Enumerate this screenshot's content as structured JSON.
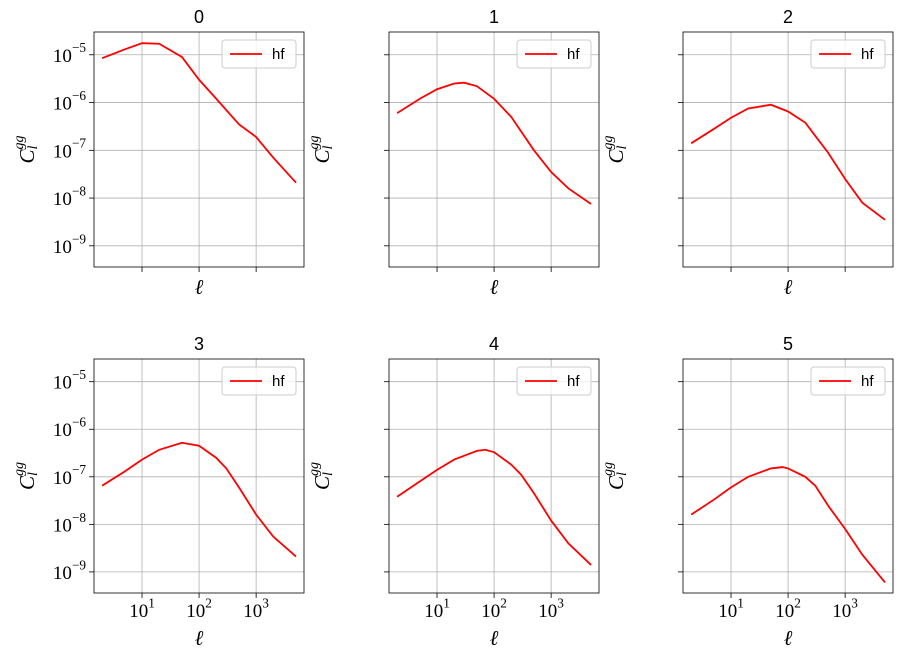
{
  "chart_data": [
    {
      "type": "line",
      "title": "0",
      "xlabel": "ℓ",
      "ylabel": "C_l^gg",
      "xscale": "log",
      "yscale": "log",
      "grid": true,
      "legend": "upper right",
      "xlim": [
        1.44,
        6900
      ],
      "ylim": [
        3.6e-10,
        3e-05
      ],
      "xticks": [
        10,
        100,
        1000
      ],
      "yticks": [
        {
          "value": 1e-09,
          "label": "10^−9"
        },
        {
          "value": 1e-08,
          "label": "10^−8"
        },
        {
          "value": 1e-07,
          "label": "10^−7"
        },
        {
          "value": 1e-06,
          "label": "10^−6"
        },
        {
          "value": 1e-05,
          "label": "10^−5"
        }
      ],
      "x": [
        2,
        5,
        10,
        20,
        50,
        100,
        200,
        500,
        1000,
        2000,
        5000
      ],
      "series": [
        {
          "name": "hf",
          "color": "#ff0000",
          "values": [
            8.5e-06,
            1.3e-05,
            1.75e-05,
            1.7e-05,
            9e-06,
            3e-06,
            1.2e-06,
            3.5e-07,
            1.9e-07,
            7e-08,
            2.1e-08
          ]
        }
      ]
    },
    {
      "type": "line",
      "title": "1",
      "xlabel": "ℓ",
      "ylabel": "C_l^gg",
      "xscale": "log",
      "yscale": "log",
      "grid": true,
      "legend": "upper right",
      "xlim": [
        1.44,
        6900
      ],
      "ylim": [
        3.6e-10,
        3e-05
      ],
      "xticks": [
        10,
        100,
        1000
      ],
      "yticks": [
        1e-09,
        1e-08,
        1e-07,
        1e-06,
        1e-05
      ],
      "x": [
        2,
        5,
        10,
        20,
        30,
        50,
        100,
        200,
        500,
        1000,
        2000,
        5000
      ],
      "series": [
        {
          "name": "hf",
          "color": "#ff0000",
          "values": [
            6e-07,
            1.2e-06,
            1.9e-06,
            2.5e-06,
            2.6e-06,
            2.2e-06,
            1.2e-06,
            5e-07,
            1e-07,
            3.5e-08,
            1.6e-08,
            7.5e-09
          ]
        }
      ]
    },
    {
      "type": "line",
      "title": "2",
      "xlabel": "ℓ",
      "ylabel": "C_l^gg",
      "xscale": "log",
      "yscale": "log",
      "grid": true,
      "legend": "upper right",
      "xlim": [
        1.44,
        6900
      ],
      "ylim": [
        3.6e-10,
        3e-05
      ],
      "xticks": [
        10,
        100,
        1000
      ],
      "yticks": [
        1e-09,
        1e-08,
        1e-07,
        1e-06,
        1e-05
      ],
      "x": [
        2,
        5,
        10,
        20,
        50,
        100,
        200,
        300,
        500,
        1000,
        2000,
        5000
      ],
      "series": [
        {
          "name": "hf",
          "color": "#ff0000",
          "values": [
            1.4e-07,
            2.8e-07,
            4.8e-07,
            7.5e-07,
            9e-07,
            6.5e-07,
            3.8e-07,
            2e-07,
            9e-08,
            2.5e-08,
            8e-09,
            3.5e-09
          ]
        }
      ]
    },
    {
      "type": "line",
      "title": "3",
      "xlabel": "ℓ",
      "ylabel": "C_l^gg",
      "xscale": "log",
      "yscale": "log",
      "grid": true,
      "legend": "upper right",
      "xlim": [
        1.44,
        6900
      ],
      "ylim": [
        3.6e-10,
        3e-05
      ],
      "xticks": [
        {
          "value": 10,
          "label": "10^1"
        },
        {
          "value": 100,
          "label": "10^2"
        },
        {
          "value": 1000,
          "label": "10^3"
        }
      ],
      "yticks": [
        {
          "value": 1e-09,
          "label": "10^−9"
        },
        {
          "value": 1e-08,
          "label": "10^−8"
        },
        {
          "value": 1e-07,
          "label": "10^−7"
        },
        {
          "value": 1e-06,
          "label": "10^−6"
        },
        {
          "value": 1e-05,
          "label": "10^−5"
        }
      ],
      "x": [
        2,
        5,
        10,
        20,
        50,
        100,
        200,
        300,
        500,
        1000,
        2000,
        5000
      ],
      "series": [
        {
          "name": "hf",
          "color": "#ff0000",
          "values": [
            6.5e-08,
            1.3e-07,
            2.3e-07,
            3.7e-07,
            5.2e-07,
            4.5e-07,
            2.5e-07,
            1.5e-07,
            6e-08,
            1.6e-08,
            5.5e-09,
            2.1e-09
          ]
        }
      ]
    },
    {
      "type": "line",
      "title": "4",
      "xlabel": "ℓ",
      "ylabel": "C_l^gg",
      "xscale": "log",
      "yscale": "log",
      "grid": true,
      "legend": "upper right",
      "xlim": [
        1.44,
        6900
      ],
      "ylim": [
        3.6e-10,
        3e-05
      ],
      "xticks": [
        {
          "value": 10,
          "label": "10^1"
        },
        {
          "value": 100,
          "label": "10^2"
        },
        {
          "value": 1000,
          "label": "10^3"
        }
      ],
      "yticks": [
        1e-09,
        1e-08,
        1e-07,
        1e-06,
        1e-05
      ],
      "x": [
        2,
        5,
        10,
        20,
        50,
        70,
        100,
        200,
        300,
        500,
        1000,
        2000,
        5000
      ],
      "series": [
        {
          "name": "hf",
          "color": "#ff0000",
          "values": [
            3.8e-08,
            8e-08,
            1.4e-07,
            2.3e-07,
            3.5e-07,
            3.7e-07,
            3.3e-07,
            1.8e-07,
            1.1e-07,
            4.5e-08,
            1.2e-08,
            4e-09,
            1.4e-09
          ]
        }
      ]
    },
    {
      "type": "line",
      "title": "5",
      "xlabel": "ℓ",
      "ylabel": "C_l^gg",
      "xscale": "log",
      "yscale": "log",
      "grid": true,
      "legend": "upper right",
      "xlim": [
        1.44,
        6900
      ],
      "ylim": [
        3.6e-10,
        3e-05
      ],
      "xticks": [
        {
          "value": 10,
          "label": "10^1"
        },
        {
          "value": 100,
          "label": "10^2"
        },
        {
          "value": 1000,
          "label": "10^3"
        }
      ],
      "yticks": [
        1e-09,
        1e-08,
        1e-07,
        1e-06,
        1e-05
      ],
      "x": [
        2,
        5,
        10,
        20,
        50,
        80,
        100,
        200,
        300,
        500,
        1000,
        2000,
        5000
      ],
      "series": [
        {
          "name": "hf",
          "color": "#ff0000",
          "values": [
            1.6e-08,
            3.3e-08,
            6e-08,
            1e-07,
            1.5e-07,
            1.6e-07,
            1.5e-07,
            1e-07,
            6.5e-08,
            2.5e-08,
            8e-09,
            2.3e-09,
            6e-10
          ]
        }
      ]
    }
  ]
}
